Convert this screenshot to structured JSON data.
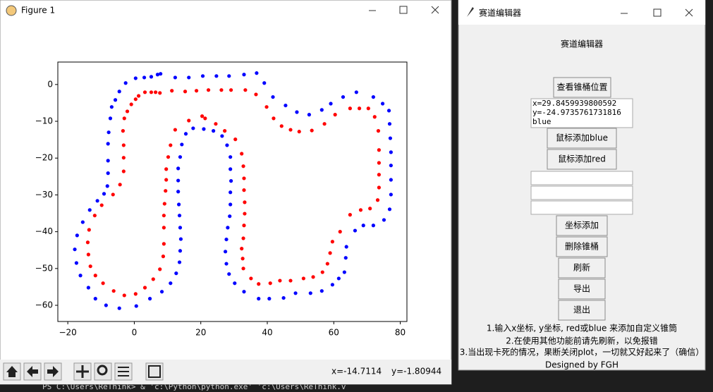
{
  "figure_window": {
    "title": "Figure 1",
    "status_x": "x=-14.7114",
    "status_y": "y=-1.80944"
  },
  "terminal": {
    "line": "PS C:\\Users\\ReThink> & 'c:\\Python\\python.exe' 'c:\\Users\\ReThink.v"
  },
  "editor_window": {
    "title": "赛道编辑器",
    "heading": "赛道编辑器",
    "buttons": [
      "查看锥桶位置",
      "鼠标添加blue",
      "鼠标添加red",
      "坐标添加",
      "删除锥桶",
      "刷新",
      "导出",
      "退出"
    ],
    "text_box": [
      "x=29.8459939800592",
      "y=-24.9735761731816",
      "blue"
    ],
    "notes": [
      "1.输入x坐标, y坐标, red或blue 来添加自定义锥筒",
      "2.在使用其他功能前请先刷新，以免报错",
      "3.当出现卡死的情况，果断关闭plot，一切就又好起来了（确信）"
    ],
    "footer": "Designed by FGH"
  },
  "chart_data": {
    "type": "scatter",
    "xlim": [
      -23,
      82
    ],
    "ylim": [
      -64.4,
      6.1
    ],
    "xticks": [
      {
        "value": -20,
        "label": "−20"
      },
      0,
      20,
      40,
      60,
      80
    ],
    "yticks": [
      0,
      {
        "value": -10,
        "label": "−10"
      },
      {
        "value": -20,
        "label": "−20"
      },
      {
        "value": -30,
        "label": "−30"
      },
      {
        "value": -40,
        "label": "−40"
      },
      {
        "value": -50,
        "label": "−50"
      },
      {
        "value": -60,
        "label": "−60"
      }
    ],
    "series": [
      {
        "color": "#0000ff",
        "x": [
          -17.9,
          -17.4,
          -16.2,
          -13.8,
          -11.7,
          -8.5,
          -4.5,
          0.6,
          4.7,
          8.3,
          10.9,
          12.6,
          13.6,
          13.8,
          14.0,
          13.8,
          13.6,
          13.4,
          13.2,
          13.2,
          13.2,
          13.8,
          14.3,
          15.5,
          17.7,
          20.9,
          23.8,
          26.4,
          27.9,
          28.9,
          28.9,
          29.1,
          28.9,
          28.9,
          28.7,
          28.1,
          27.7,
          27.4,
          27.7,
          28.5,
          30.2,
          33.0,
          37.4,
          40.6,
          44.9,
          48.5,
          53.0,
          56.4,
          59.6,
          61.5,
          63.2,
          63.6,
          63.8,
          66.4,
          68.9,
          71.9,
          75.1,
          76.8,
          77.2,
          77.2,
          77.2,
          77.2,
          77.0,
          76.8,
          76.6,
          74.7,
          71.9,
          66.8,
          62.8,
          59.1,
          56.4,
          52.6,
          48.9,
          45.5,
          41.7,
          39.1,
          36.8,
          33.0,
          28.5,
          24.7,
          20.6,
          16.4,
          12.3,
          7.9,
          7.0,
          5.1,
          3.0,
          0.4,
          -2.6,
          -4.5,
          -5.7,
          -6.8,
          -7.2,
          -7.7,
          -7.9,
          -7.9,
          -7.9,
          -8.1,
          -9.1,
          -11.1,
          -13.4,
          -15.5,
          -17.2
        ],
        "y": [
          -44.8,
          -48.5,
          -51.9,
          -55.2,
          -58.2,
          -60.0,
          -60.8,
          -60.2,
          -58.2,
          -56.3,
          -54.0,
          -51.3,
          -48.3,
          -45.2,
          -42.0,
          -38.9,
          -35.6,
          -32.6,
          -29.1,
          -26.1,
          -22.8,
          -19.7,
          -16.3,
          -13.4,
          -11.9,
          -12.1,
          -12.6,
          -14.0,
          -16.5,
          -19.7,
          -23.0,
          -26.2,
          -29.3,
          -32.6,
          -35.8,
          -38.9,
          -42.1,
          -45.4,
          -48.7,
          -51.5,
          -54.0,
          -56.3,
          -58.2,
          -58.2,
          -58.0,
          -56.7,
          -56.7,
          -56.1,
          -54.4,
          -52.7,
          -51.0,
          -47.1,
          -44.1,
          -39.7,
          -38.3,
          -38.3,
          -36.8,
          -33.9,
          -29.9,
          -25.9,
          -22.0,
          -18.4,
          -14.6,
          -10.7,
          -7.1,
          -5.2,
          -3.4,
          -2.1,
          -3.4,
          -5.2,
          -6.9,
          -8.2,
          -7.5,
          -5.7,
          -3.4,
          0.4,
          3.1,
          2.7,
          2.3,
          2.3,
          2.3,
          1.9,
          1.9,
          2.9,
          2.7,
          2.1,
          1.9,
          1.7,
          0.4,
          -1.9,
          -4.2,
          -6.1,
          -9.2,
          -13.0,
          -16.1,
          -20.7,
          -24.1,
          -27.6,
          -29.7,
          -31.6,
          -34.1,
          -37.4,
          -41.0
        ]
      },
      {
        "color": "#ff0000",
        "x": [
          0.4,
          -0.9,
          -2.1,
          -3.0,
          -3.4,
          -3.2,
          -3.2,
          -3.2,
          -4.3,
          -6.4,
          -9.8,
          -11.9,
          -13.6,
          -14.0,
          -13.8,
          -13.2,
          -11.7,
          -9.4,
          -6.2,
          -3.0,
          0.4,
          3.2,
          5.7,
          7.7,
          8.7,
          8.9,
          8.9,
          8.9,
          9.1,
          9.4,
          9.6,
          9.6,
          10.2,
          10.9,
          12.3,
          16.4,
          20.4,
          21.3,
          24.5,
          27.2,
          30.4,
          32.3,
          32.8,
          33.0,
          33.0,
          33.2,
          33.2,
          33.0,
          32.8,
          32.3,
          32.6,
          32.8,
          35.1,
          37.4,
          40.9,
          43.8,
          47.0,
          50.9,
          53.8,
          56.6,
          58.1,
          58.9,
          59.6,
          61.9,
          64.9,
          68.1,
          70.9,
          73.2,
          73.6,
          73.6,
          73.6,
          73.6,
          73.4,
          72.3,
          70.4,
          67.7,
          64.9,
          60.4,
          57.2,
          53.4,
          49.6,
          47.0,
          44.3,
          41.9,
          39.8,
          36.6,
          33.4,
          29.1,
          26.2,
          22.3,
          18.7,
          15.3,
          11.3,
          7.7,
          6.4,
          5.1,
          3.2,
          1.3
        ],
        "y": [
          -4.0,
          -5.4,
          -7.3,
          -9.2,
          -12.6,
          -16.5,
          -19.9,
          -23.6,
          -27.2,
          -29.9,
          -32.8,
          -35.6,
          -39.5,
          -42.9,
          -46.2,
          -49.4,
          -51.9,
          -54.0,
          -56.1,
          -57.3,
          -56.9,
          -55.2,
          -52.9,
          -50.2,
          -46.7,
          -43.3,
          -38.9,
          -35.6,
          -32.4,
          -28.9,
          -25.9,
          -23.0,
          -19.7,
          -16.5,
          -12.3,
          -9.8,
          -8.6,
          -9.2,
          -10.7,
          -12.6,
          -14.9,
          -18.8,
          -22.2,
          -25.5,
          -28.7,
          -32.0,
          -35.1,
          -38.3,
          -41.8,
          -44.6,
          -47.3,
          -50.0,
          -52.7,
          -54.2,
          -54.0,
          -53.3,
          -53.3,
          -52.7,
          -52.3,
          -51.0,
          -48.7,
          -45.8,
          -42.7,
          -40.0,
          -35.4,
          -34.1,
          -33.7,
          -31.4,
          -28.0,
          -24.5,
          -21.3,
          -17.8,
          -12.6,
          -8.8,
          -6.5,
          -6.5,
          -6.5,
          -8.2,
          -10.7,
          -12.5,
          -12.8,
          -12.3,
          -11.3,
          -9.2,
          -6.1,
          -2.7,
          -1.5,
          -1.5,
          -1.5,
          -1.5,
          -1.7,
          -1.9,
          -1.7,
          -2.3,
          -2.1,
          -2.1,
          -2.1,
          -3.1
        ]
      }
    ]
  }
}
